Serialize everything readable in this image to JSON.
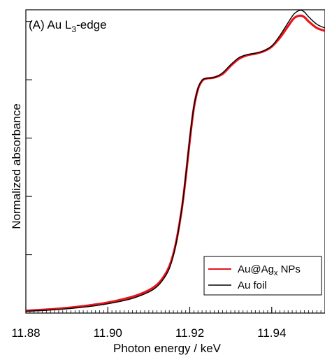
{
  "chart_data": {
    "type": "line",
    "panel_label": "(A) Au L",
    "panel_label_sub": "3",
    "panel_label_suffix": "-edge",
    "xlabel": "Photon energy / keV",
    "ylabel": "Normalized absorbance",
    "xlim": [
      11.88,
      11.953
    ],
    "ylim": [
      0.0,
      1.3
    ],
    "x_ticks": [
      "11.88",
      "11.90",
      "11.92",
      "11.94"
    ],
    "x_tick_values": [
      11.88,
      11.9,
      11.92,
      11.94
    ],
    "y_tick_values": [
      0.25,
      0.5,
      0.75,
      1.0,
      1.25
    ],
    "grid": false,
    "legend_position": "bottom-right",
    "series": [
      {
        "name_prefix": "Au@Ag",
        "name_sub": "x",
        "name_suffix": " NPs",
        "color": "#e8141b",
        "points": [
          [
            11.88,
            0.01
          ],
          [
            11.885,
            0.015
          ],
          [
            11.89,
            0.022
          ],
          [
            11.895,
            0.032
          ],
          [
            11.9,
            0.045
          ],
          [
            11.905,
            0.065
          ],
          [
            11.908,
            0.082
          ],
          [
            11.911,
            0.108
          ],
          [
            11.913,
            0.14
          ],
          [
            11.915,
            0.2
          ],
          [
            11.9165,
            0.29
          ],
          [
            11.918,
            0.44
          ],
          [
            11.919,
            0.58
          ],
          [
            11.92,
            0.74
          ],
          [
            11.921,
            0.88
          ],
          [
            11.922,
            0.96
          ],
          [
            11.923,
            0.995
          ],
          [
            11.924,
            1.005
          ],
          [
            11.926,
            1.01
          ],
          [
            11.928,
            1.025
          ],
          [
            11.93,
            1.06
          ],
          [
            11.932,
            1.09
          ],
          [
            11.934,
            1.105
          ],
          [
            11.936,
            1.112
          ],
          [
            11.938,
            1.122
          ],
          [
            11.94,
            1.142
          ],
          [
            11.942,
            1.18
          ],
          [
            11.944,
            1.23
          ],
          [
            11.9455,
            1.265
          ],
          [
            11.947,
            1.275
          ],
          [
            11.948,
            1.268
          ],
          [
            11.949,
            1.25
          ],
          [
            11.951,
            1.222
          ],
          [
            11.953,
            1.21
          ]
        ]
      },
      {
        "name": "Au foil",
        "color": "#000000",
        "points": [
          [
            11.88,
            0.008
          ],
          [
            11.885,
            0.012
          ],
          [
            11.89,
            0.018
          ],
          [
            11.895,
            0.027
          ],
          [
            11.9,
            0.04
          ],
          [
            11.905,
            0.058
          ],
          [
            11.908,
            0.075
          ],
          [
            11.911,
            0.1
          ],
          [
            11.913,
            0.132
          ],
          [
            11.915,
            0.19
          ],
          [
            11.9165,
            0.285
          ],
          [
            11.918,
            0.44
          ],
          [
            11.919,
            0.585
          ],
          [
            11.92,
            0.75
          ],
          [
            11.921,
            0.885
          ],
          [
            11.922,
            0.963
          ],
          [
            11.923,
            0.998
          ],
          [
            11.924,
            1.006
          ],
          [
            11.926,
            1.01
          ],
          [
            11.928,
            1.03
          ],
          [
            11.93,
            1.065
          ],
          [
            11.932,
            1.095
          ],
          [
            11.934,
            1.108
          ],
          [
            11.936,
            1.114
          ],
          [
            11.938,
            1.124
          ],
          [
            11.94,
            1.145
          ],
          [
            11.942,
            1.19
          ],
          [
            11.944,
            1.245
          ],
          [
            11.9455,
            1.283
          ],
          [
            11.947,
            1.298
          ],
          [
            11.948,
            1.29
          ],
          [
            11.949,
            1.27
          ],
          [
            11.951,
            1.238
          ],
          [
            11.953,
            1.222
          ]
        ]
      }
    ]
  }
}
